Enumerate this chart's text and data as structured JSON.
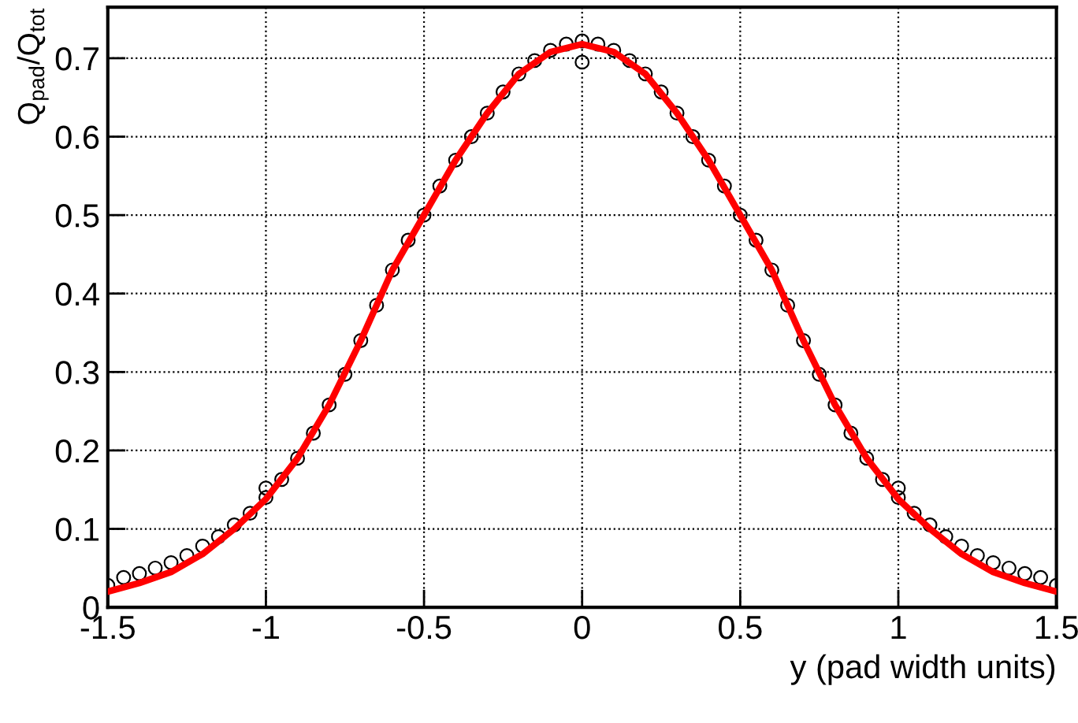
{
  "chart_data": {
    "type": "scatter",
    "xlabel": "y (pad width units)",
    "ylabel": "Q$_{pad}$/Q$_{tot}$",
    "xlim": [
      -1.5,
      1.5
    ],
    "ylim": [
      0,
      0.765
    ],
    "xticks": [
      -1.5,
      -1,
      -0.5,
      0,
      0.5,
      1,
      1.5
    ],
    "yticks": [
      0,
      0.1,
      0.2,
      0.3,
      0.4,
      0.5,
      0.6,
      0.7
    ],
    "grid": true,
    "series": [
      {
        "color": "#000000",
        "marker": "circle",
        "x": [
          -1.5,
          -1.45,
          -1.4,
          -1.35,
          -1.3,
          -1.25,
          -1.2,
          -1.15,
          -1.1,
          -1.05,
          -1.0,
          -0.95,
          -0.9,
          -0.85,
          -0.8,
          -0.75,
          -0.7,
          -0.65,
          -0.6,
          -0.55,
          -0.5,
          -0.45,
          -0.4,
          -0.35,
          -0.3,
          -0.25,
          -0.2,
          -0.15,
          -0.1,
          -0.05,
          0,
          0.05,
          0.1,
          0.15,
          0.2,
          0.25,
          0.3,
          0.35,
          0.4,
          0.45,
          0.5,
          0.55,
          0.6,
          0.65,
          0.7,
          0.75,
          0.8,
          0.85,
          0.9,
          0.95,
          1.0,
          1.05,
          1.1,
          1.15,
          1.2,
          1.25,
          1.3,
          1.35,
          1.4,
          1.45,
          1.5,
          0,
          -1,
          1
        ],
        "values": [
          0.028,
          0.038,
          0.043,
          0.05,
          0.057,
          0.066,
          0.078,
          0.09,
          0.105,
          0.12,
          0.14,
          0.163,
          0.19,
          0.222,
          0.258,
          0.297,
          0.34,
          0.385,
          0.43,
          0.468,
          0.5,
          0.537,
          0.57,
          0.6,
          0.63,
          0.657,
          0.68,
          0.697,
          0.71,
          0.718,
          0.722,
          0.718,
          0.71,
          0.697,
          0.68,
          0.657,
          0.63,
          0.6,
          0.57,
          0.537,
          0.5,
          0.468,
          0.43,
          0.385,
          0.34,
          0.297,
          0.258,
          0.222,
          0.19,
          0.163,
          0.14,
          0.12,
          0.105,
          0.09,
          0.078,
          0.066,
          0.057,
          0.05,
          0.043,
          0.038,
          0.028,
          0.695,
          0.152,
          0.152
        ]
      },
      {
        "type": "line",
        "color": "#ff0000",
        "marker": "none",
        "line_style": "solid",
        "x": [
          -1.5,
          -1.4,
          -1.3,
          -1.2,
          -1.1,
          -1.0,
          -0.9,
          -0.8,
          -0.7,
          -0.6,
          -0.5,
          -0.4,
          -0.3,
          -0.2,
          -0.1,
          0,
          0.1,
          0.2,
          0.3,
          0.4,
          0.5,
          0.6,
          0.7,
          0.8,
          0.9,
          1.0,
          1.1,
          1.2,
          1.3,
          1.4,
          1.5
        ],
        "values": [
          0.02,
          0.031,
          0.045,
          0.068,
          0.1,
          0.138,
          0.19,
          0.258,
          0.34,
          0.43,
          0.5,
          0.57,
          0.63,
          0.68,
          0.708,
          0.718,
          0.708,
          0.68,
          0.63,
          0.57,
          0.5,
          0.43,
          0.34,
          0.258,
          0.19,
          0.138,
          0.1,
          0.068,
          0.045,
          0.031,
          0.02
        ]
      }
    ]
  }
}
